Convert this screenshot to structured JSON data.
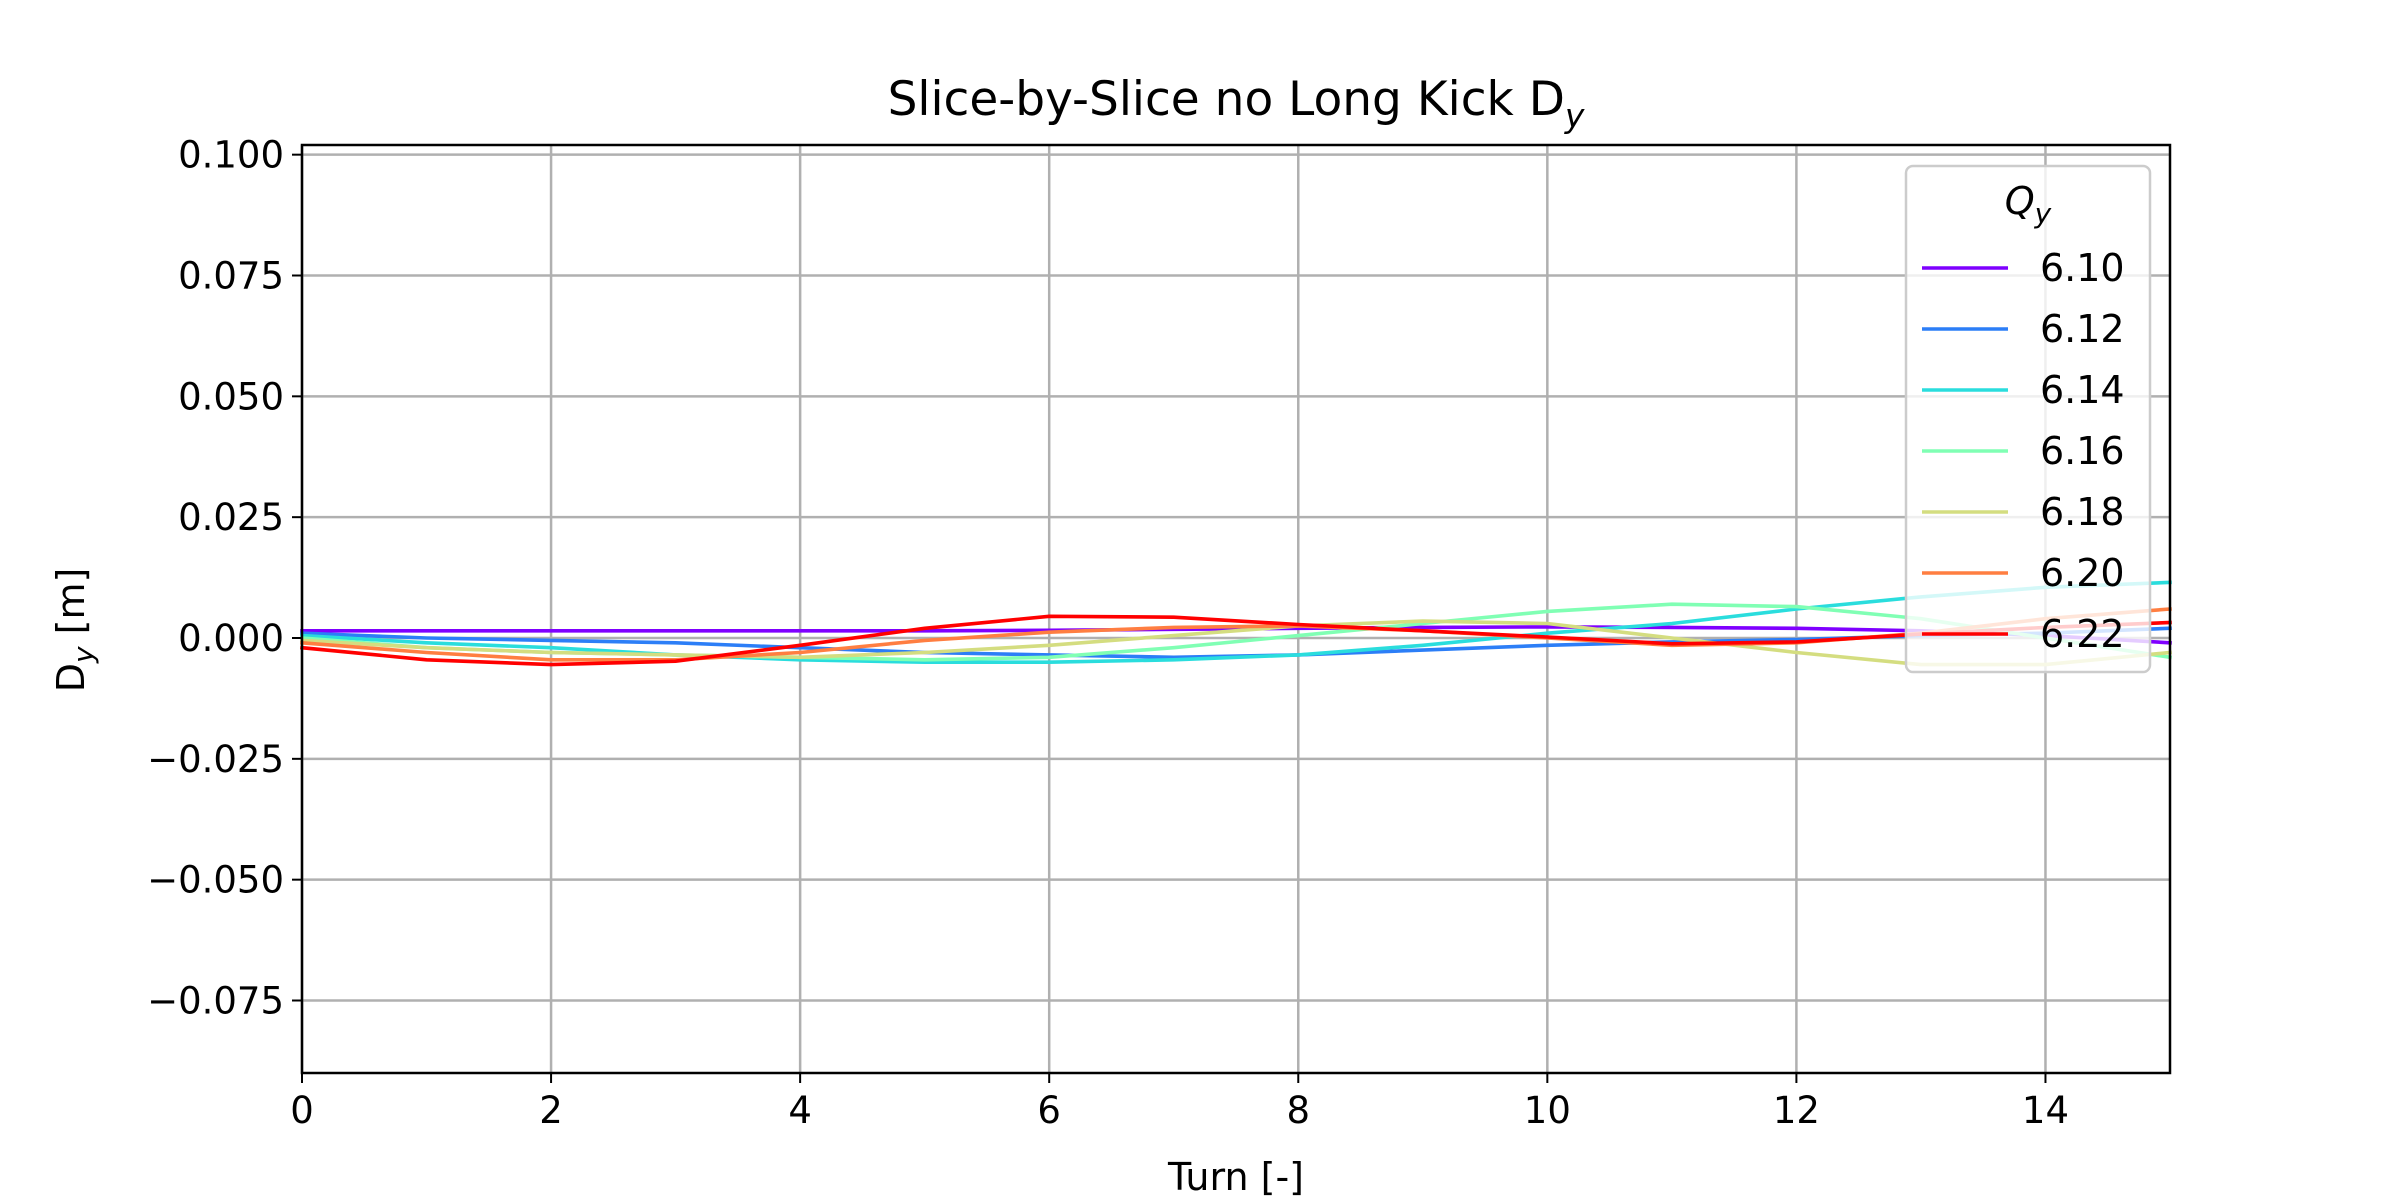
{
  "chart_data": {
    "type": "line",
    "title": "Slice-by-Slice no Long Kick D",
    "title_sub": "y",
    "xlabel": "Turn [-]",
    "ylabel_main": "D",
    "ylabel_sub": "y",
    "ylabel_unit": " [m]",
    "xlim": [
      0,
      15
    ],
    "ylim": [
      -0.09,
      0.102
    ],
    "xticks": [
      0,
      2,
      4,
      6,
      8,
      10,
      12,
      14
    ],
    "xtick_labels": [
      "0",
      "2",
      "4",
      "6",
      "8",
      "10",
      "12",
      "14"
    ],
    "yticks": [
      0.1,
      0.075,
      0.05,
      0.025,
      0.0,
      -0.025,
      -0.05,
      -0.075
    ],
    "ytick_labels": [
      "0.100",
      "0.075",
      "0.050",
      "0.025",
      "0.000",
      "−0.025",
      "−0.050",
      "−0.075"
    ],
    "grid": true,
    "legend": {
      "title_main": "Q",
      "title_sub": "y",
      "placement": "upper-right"
    },
    "x": [
      0,
      1,
      2,
      3,
      4,
      5,
      6,
      7,
      8,
      9,
      10,
      11,
      12,
      13,
      14,
      15
    ],
    "series": [
      {
        "name": "6.10",
        "color": "#7f00ff",
        "values": [
          0.0015,
          0.0015,
          0.0015,
          0.0015,
          0.0015,
          0.0015,
          0.0016,
          0.0018,
          0.002,
          0.0022,
          0.0023,
          0.0022,
          0.002,
          0.0015,
          0.0005,
          -0.001
        ]
      },
      {
        "name": "6.12",
        "color": "#2c7ef7",
        "values": [
          0.001,
          0.0,
          -0.0005,
          -0.001,
          -0.002,
          -0.003,
          -0.0035,
          -0.004,
          -0.0035,
          -0.0025,
          -0.0015,
          -0.0008,
          -0.0003,
          0.0005,
          0.001,
          0.002
        ]
      },
      {
        "name": "6.14",
        "color": "#2adddd",
        "values": [
          0.0005,
          -0.001,
          -0.002,
          -0.0035,
          -0.0045,
          -0.005,
          -0.005,
          -0.0045,
          -0.0035,
          -0.0015,
          0.001,
          0.003,
          0.006,
          0.0085,
          0.0105,
          0.0115
        ]
      },
      {
        "name": "6.16",
        "color": "#80ffb4",
        "values": [
          0.0,
          -0.002,
          -0.003,
          -0.0035,
          -0.004,
          -0.0045,
          -0.004,
          -0.002,
          0.0005,
          0.003,
          0.0055,
          0.007,
          0.0065,
          0.004,
          0.0,
          -0.004
        ]
      },
      {
        "name": "6.18",
        "color": "#d4dd80",
        "values": [
          -0.0005,
          -0.002,
          -0.003,
          -0.0035,
          -0.004,
          -0.003,
          -0.0015,
          0.0005,
          0.0025,
          0.0035,
          0.003,
          0.0,
          -0.003,
          -0.0055,
          -0.0055,
          -0.003
        ]
      },
      {
        "name": "6.20",
        "color": "#ff7e41",
        "values": [
          -0.001,
          -0.003,
          -0.0045,
          -0.0045,
          -0.003,
          -0.0005,
          0.0012,
          0.0022,
          0.0025,
          0.0015,
          0.0,
          -0.0015,
          -0.001,
          0.001,
          0.004,
          0.006
        ]
      },
      {
        "name": "6.22",
        "color": "#ff0000",
        "values": [
          -0.002,
          -0.0045,
          -0.0055,
          -0.0048,
          -0.0015,
          0.002,
          0.0045,
          0.0043,
          0.0028,
          0.0015,
          0.0002,
          -0.0012,
          -0.0008,
          0.0008,
          0.0022,
          0.0032
        ]
      }
    ]
  }
}
